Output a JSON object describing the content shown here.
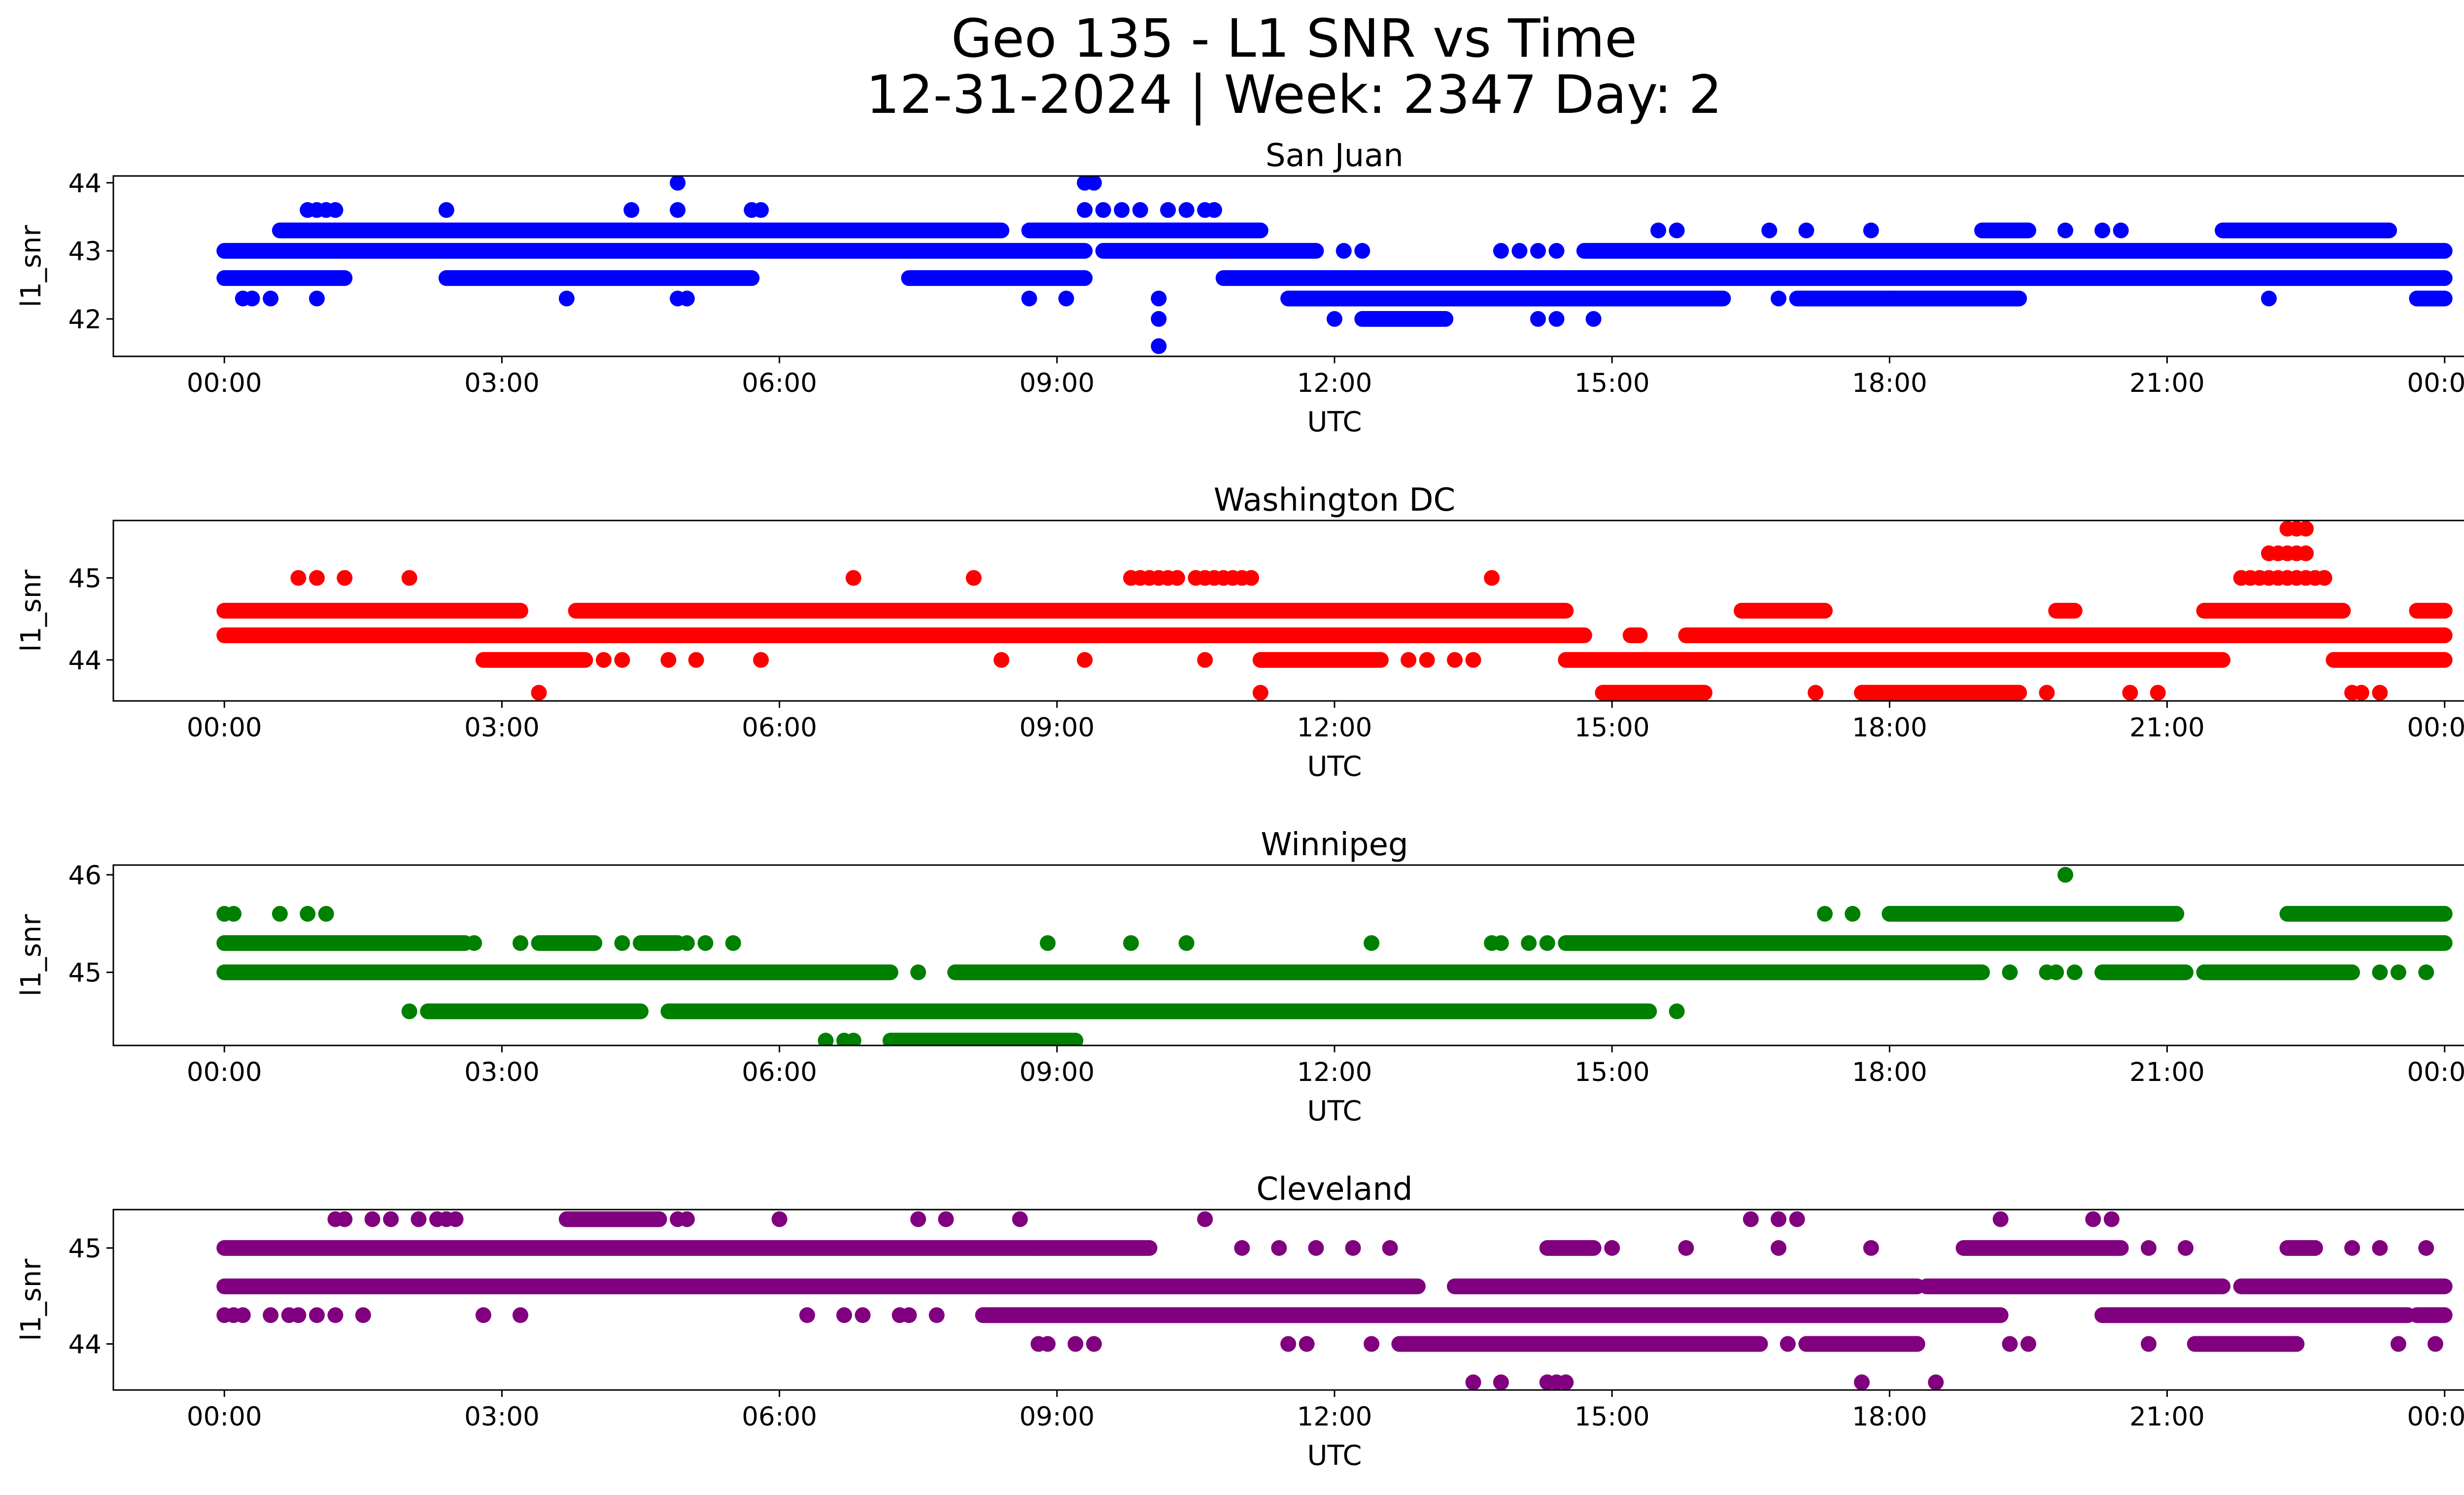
{
  "figure": {
    "title_line1": "Geo 135 - L1 SNR vs Time",
    "title_line2": "12-31-2024 | Week: 2347 Day: 2"
  },
  "chart_data": [
    {
      "type": "scatter",
      "title": "San Juan",
      "xlabel": "UTC",
      "ylabel": "l1_snr",
      "color": "#0000ff",
      "xlim_hours": [
        -1.2,
        25.2
      ],
      "ylim": [
        41.45,
        44.1
      ],
      "x_ticks": [
        "00:00",
        "03:00",
        "06:00",
        "09:00",
        "12:00",
        "15:00",
        "18:00",
        "21:00",
        "00:00"
      ],
      "y_ticks": [
        42,
        43,
        44
      ],
      "bands": [
        {
          "y": 43.3,
          "from": 0.6,
          "to": 8.4
        },
        {
          "y": 43.3,
          "from": 8.7,
          "to": 11.2
        },
        {
          "y": 43.3,
          "from": 19.0,
          "to": 19.5
        },
        {
          "y": 43.3,
          "from": 21.6,
          "to": 23.4
        },
        {
          "y": 43.0,
          "from": 0.0,
          "to": 9.3
        },
        {
          "y": 43.0,
          "from": 9.5,
          "to": 11.8
        },
        {
          "y": 43.0,
          "from": 14.7,
          "to": 24.0
        },
        {
          "y": 42.6,
          "from": 0.0,
          "to": 1.3
        },
        {
          "y": 42.6,
          "from": 2.4,
          "to": 5.7
        },
        {
          "y": 42.6,
          "from": 7.4,
          "to": 9.3
        },
        {
          "y": 42.6,
          "from": 10.8,
          "to": 24.0
        },
        {
          "y": 42.3,
          "from": 11.5,
          "to": 16.2
        },
        {
          "y": 42.3,
          "from": 17.0,
          "to": 19.4
        },
        {
          "y": 42.3,
          "from": 23.7,
          "to": 24.0
        },
        {
          "y": 42.0,
          "from": 12.3,
          "to": 13.2
        }
      ],
      "points": [
        [
          0.9,
          43.6
        ],
        [
          1.0,
          43.6
        ],
        [
          1.1,
          43.6
        ],
        [
          1.2,
          43.6
        ],
        [
          2.4,
          43.6
        ],
        [
          4.4,
          43.6
        ],
        [
          4.9,
          43.6
        ],
        [
          5.7,
          43.6
        ],
        [
          5.8,
          43.6
        ],
        [
          4.9,
          44.0
        ],
        [
          9.3,
          44.0
        ],
        [
          9.4,
          44.0
        ],
        [
          9.3,
          43.6
        ],
        [
          9.5,
          43.6
        ],
        [
          9.7,
          43.6
        ],
        [
          9.9,
          43.6
        ],
        [
          10.2,
          43.6
        ],
        [
          10.4,
          43.6
        ],
        [
          10.6,
          43.6
        ],
        [
          10.7,
          43.6
        ],
        [
          0.2,
          42.3
        ],
        [
          0.3,
          42.3
        ],
        [
          0.5,
          42.3
        ],
        [
          1.0,
          42.3
        ],
        [
          3.7,
          42.3
        ],
        [
          4.9,
          42.3
        ],
        [
          5.0,
          42.3
        ],
        [
          8.7,
          42.3
        ],
        [
          9.1,
          42.3
        ],
        [
          10.1,
          42.3
        ],
        [
          10.1,
          42.0
        ],
        [
          10.1,
          41.6
        ],
        [
          12.0,
          42.0
        ],
        [
          12.1,
          43.0
        ],
        [
          12.3,
          43.0
        ],
        [
          13.8,
          43.0
        ],
        [
          14.0,
          43.0
        ],
        [
          14.2,
          43.0
        ],
        [
          14.4,
          43.0
        ],
        [
          14.2,
          42.0
        ],
        [
          14.4,
          42.0
        ],
        [
          14.8,
          42.0
        ],
        [
          15.5,
          43.3
        ],
        [
          15.7,
          43.3
        ],
        [
          16.7,
          43.3
        ],
        [
          17.1,
          43.3
        ],
        [
          17.8,
          43.3
        ],
        [
          19.9,
          43.3
        ],
        [
          20.3,
          43.3
        ],
        [
          20.5,
          43.3
        ],
        [
          22.1,
          43.3
        ],
        [
          22.3,
          43.3
        ],
        [
          22.1,
          42.3
        ],
        [
          16.8,
          42.3
        ],
        [
          17.9,
          42.3
        ],
        [
          18.0,
          42.3
        ]
      ]
    },
    {
      "type": "scatter",
      "title": "Washington DC",
      "xlabel": "UTC",
      "ylabel": "l1_snr",
      "color": "#ff0000",
      "xlim_hours": [
        -1.2,
        25.2
      ],
      "ylim": [
        43.5,
        45.7
      ],
      "x_ticks": [
        "00:00",
        "03:00",
        "06:00",
        "09:00",
        "12:00",
        "15:00",
        "18:00",
        "21:00",
        "00:00"
      ],
      "y_ticks": [
        44,
        45
      ],
      "bands": [
        {
          "y": 44.6,
          "from": 0.0,
          "to": 3.2
        },
        {
          "y": 44.6,
          "from": 3.8,
          "to": 14.5
        },
        {
          "y": 44.6,
          "from": 16.4,
          "to": 17.3
        },
        {
          "y": 44.6,
          "from": 19.8,
          "to": 20.0
        },
        {
          "y": 44.6,
          "from": 21.4,
          "to": 22.9
        },
        {
          "y": 44.6,
          "from": 23.7,
          "to": 24.0
        },
        {
          "y": 44.3,
          "from": 0.0,
          "to": 14.7
        },
        {
          "y": 44.3,
          "from": 15.2,
          "to": 15.3
        },
        {
          "y": 44.3,
          "from": 15.8,
          "to": 24.0
        },
        {
          "y": 44.0,
          "from": 2.8,
          "to": 3.9
        },
        {
          "y": 44.0,
          "from": 11.2,
          "to": 12.5
        },
        {
          "y": 44.0,
          "from": 14.5,
          "to": 21.6
        },
        {
          "y": 44.0,
          "from": 22.8,
          "to": 24.0
        },
        {
          "y": 43.6,
          "from": 14.9,
          "to": 16.0
        },
        {
          "y": 43.6,
          "from": 17.7,
          "to": 19.4
        }
      ],
      "points": [
        [
          0.8,
          45.0
        ],
        [
          1.0,
          45.0
        ],
        [
          1.3,
          45.0
        ],
        [
          2.0,
          45.0
        ],
        [
          6.8,
          45.0
        ],
        [
          8.1,
          45.0
        ],
        [
          13.7,
          45.0
        ],
        [
          9.8,
          45.0
        ],
        [
          9.9,
          45.0
        ],
        [
          10.0,
          45.0
        ],
        [
          10.1,
          45.0
        ],
        [
          10.2,
          45.0
        ],
        [
          10.3,
          45.0
        ],
        [
          10.5,
          45.0
        ],
        [
          10.6,
          45.0
        ],
        [
          10.7,
          45.0
        ],
        [
          10.8,
          45.0
        ],
        [
          10.9,
          45.0
        ],
        [
          11.0,
          45.0
        ],
        [
          11.1,
          45.0
        ],
        [
          3.4,
          43.6
        ],
        [
          11.2,
          43.6
        ],
        [
          17.2,
          43.6
        ],
        [
          19.7,
          43.6
        ],
        [
          20.6,
          43.6
        ],
        [
          20.9,
          43.6
        ],
        [
          23.0,
          43.6
        ],
        [
          23.1,
          43.6
        ],
        [
          23.3,
          43.6
        ],
        [
          4.1,
          44.0
        ],
        [
          4.3,
          44.0
        ],
        [
          4.8,
          44.0
        ],
        [
          5.1,
          44.0
        ],
        [
          5.8,
          44.0
        ],
        [
          8.4,
          44.0
        ],
        [
          9.3,
          44.0
        ],
        [
          10.6,
          44.0
        ],
        [
          12.8,
          44.0
        ],
        [
          13.0,
          44.0
        ],
        [
          13.3,
          44.0
        ],
        [
          13.5,
          44.0
        ],
        [
          21.8,
          45.0
        ],
        [
          21.9,
          45.0
        ],
        [
          22.0,
          45.0
        ],
        [
          22.1,
          45.0
        ],
        [
          22.2,
          45.0
        ],
        [
          22.3,
          45.0
        ],
        [
          22.4,
          45.0
        ],
        [
          22.5,
          45.0
        ],
        [
          22.6,
          45.0
        ],
        [
          22.7,
          45.0
        ],
        [
          22.1,
          45.3
        ],
        [
          22.2,
          45.3
        ],
        [
          22.3,
          45.3
        ],
        [
          22.4,
          45.3
        ],
        [
          22.5,
          45.3
        ],
        [
          22.3,
          45.6
        ],
        [
          22.4,
          45.6
        ],
        [
          22.5,
          45.6
        ]
      ]
    },
    {
      "type": "scatter",
      "title": "Winnipeg",
      "xlabel": "UTC",
      "ylabel": "l1_snr",
      "color": "#008000",
      "xlim_hours": [
        -1.2,
        25.2
      ],
      "ylim": [
        44.25,
        46.1
      ],
      "x_ticks": [
        "00:00",
        "03:00",
        "06:00",
        "09:00",
        "12:00",
        "15:00",
        "18:00",
        "21:00",
        "00:00"
      ],
      "y_ticks": [
        45,
        46
      ],
      "bands": [
        {
          "y": 45.6,
          "from": 18.0,
          "to": 21.1
        },
        {
          "y": 45.6,
          "from": 22.3,
          "to": 24.0
        },
        {
          "y": 45.3,
          "from": 0.0,
          "to": 2.6
        },
        {
          "y": 45.3,
          "from": 3.4,
          "to": 4.0
        },
        {
          "y": 45.3,
          "from": 4.5,
          "to": 4.9
        },
        {
          "y": 45.3,
          "from": 14.5,
          "to": 24.0
        },
        {
          "y": 45.0,
          "from": 0.0,
          "to": 7.2
        },
        {
          "y": 45.0,
          "from": 7.9,
          "to": 19.0
        },
        {
          "y": 45.0,
          "from": 20.3,
          "to": 21.2
        },
        {
          "y": 45.0,
          "from": 21.4,
          "to": 23.0
        },
        {
          "y": 44.6,
          "from": 2.2,
          "to": 4.5
        },
        {
          "y": 44.6,
          "from": 4.8,
          "to": 15.4
        },
        {
          "y": 44.3,
          "from": 7.2,
          "to": 9.2
        }
      ],
      "points": [
        [
          0.0,
          45.6
        ],
        [
          0.1,
          45.6
        ],
        [
          0.6,
          45.6
        ],
        [
          0.9,
          45.6
        ],
        [
          1.1,
          45.6
        ],
        [
          17.3,
          45.6
        ],
        [
          17.6,
          45.6
        ],
        [
          19.9,
          46.0
        ],
        [
          2.7,
          45.3
        ],
        [
          3.2,
          45.3
        ],
        [
          4.3,
          45.3
        ],
        [
          5.0,
          45.3
        ],
        [
          5.2,
          45.3
        ],
        [
          5.5,
          45.3
        ],
        [
          8.9,
          45.3
        ],
        [
          9.8,
          45.3
        ],
        [
          10.4,
          45.3
        ],
        [
          12.4,
          45.3
        ],
        [
          13.7,
          45.3
        ],
        [
          13.8,
          45.3
        ],
        [
          14.1,
          45.3
        ],
        [
          14.3,
          45.3
        ],
        [
          7.5,
          45.0
        ],
        [
          19.3,
          45.0
        ],
        [
          19.7,
          45.0
        ],
        [
          19.8,
          45.0
        ],
        [
          20.0,
          45.0
        ],
        [
          23.3,
          45.0
        ],
        [
          23.5,
          45.0
        ],
        [
          23.8,
          45.0
        ],
        [
          2.0,
          44.6
        ],
        [
          15.7,
          44.6
        ],
        [
          6.5,
          44.3
        ],
        [
          6.7,
          44.3
        ],
        [
          6.8,
          44.3
        ]
      ]
    },
    {
      "type": "scatter",
      "title": "Cleveland",
      "xlabel": "UTC",
      "ylabel": "l1_snr",
      "color": "#800080",
      "xlim_hours": [
        -1.2,
        25.2
      ],
      "ylim": [
        43.52,
        45.4
      ],
      "x_ticks": [
        "00:00",
        "03:00",
        "06:00",
        "09:00",
        "12:00",
        "15:00",
        "18:00",
        "21:00",
        "00:00"
      ],
      "y_ticks": [
        44,
        45
      ],
      "bands": [
        {
          "y": 45.3,
          "from": 3.7,
          "to": 4.7
        },
        {
          "y": 45.0,
          "from": 0.0,
          "to": 8.8
        },
        {
          "y": 45.0,
          "from": 8.8,
          "to": 10.0
        },
        {
          "y": 45.0,
          "from": 14.3,
          "to": 14.8
        },
        {
          "y": 45.0,
          "from": 18.8,
          "to": 20.5
        },
        {
          "y": 45.0,
          "from": 22.3,
          "to": 22.6
        },
        {
          "y": 44.6,
          "from": 0.0,
          "to": 12.9
        },
        {
          "y": 44.6,
          "from": 13.3,
          "to": 18.3
        },
        {
          "y": 44.6,
          "from": 18.4,
          "to": 21.6
        },
        {
          "y": 44.6,
          "from": 21.8,
          "to": 24.0
        },
        {
          "y": 44.3,
          "from": 8.2,
          "to": 19.2
        },
        {
          "y": 44.3,
          "from": 20.3,
          "to": 23.6
        },
        {
          "y": 44.3,
          "from": 23.7,
          "to": 24.0
        },
        {
          "y": 44.0,
          "from": 12.7,
          "to": 16.6
        },
        {
          "y": 44.0,
          "from": 17.1,
          "to": 18.3
        },
        {
          "y": 44.0,
          "from": 21.3,
          "to": 22.4
        }
      ],
      "points": [
        [
          1.2,
          45.3
        ],
        [
          1.3,
          45.3
        ],
        [
          1.6,
          45.3
        ],
        [
          1.8,
          45.3
        ],
        [
          2.1,
          45.3
        ],
        [
          2.3,
          45.3
        ],
        [
          2.4,
          45.3
        ],
        [
          2.5,
          45.3
        ],
        [
          4.9,
          45.3
        ],
        [
          5.0,
          45.3
        ],
        [
          6.0,
          45.3
        ],
        [
          7.5,
          45.3
        ],
        [
          7.8,
          45.3
        ],
        [
          8.6,
          45.3
        ],
        [
          10.6,
          45.3
        ],
        [
          16.5,
          45.3
        ],
        [
          16.8,
          45.3
        ],
        [
          17.0,
          45.3
        ],
        [
          19.2,
          45.3
        ],
        [
          20.2,
          45.3
        ],
        [
          20.4,
          45.3
        ],
        [
          0.0,
          44.3
        ],
        [
          0.1,
          44.3
        ],
        [
          0.2,
          44.3
        ],
        [
          0.5,
          44.3
        ],
        [
          0.7,
          44.3
        ],
        [
          0.8,
          44.3
        ],
        [
          1.0,
          44.3
        ],
        [
          1.2,
          44.3
        ],
        [
          1.5,
          44.3
        ],
        [
          2.8,
          44.3
        ],
        [
          3.2,
          44.3
        ],
        [
          6.3,
          44.3
        ],
        [
          6.7,
          44.3
        ],
        [
          6.9,
          44.3
        ],
        [
          7.3,
          44.3
        ],
        [
          7.4,
          44.3
        ],
        [
          7.7,
          44.3
        ],
        [
          8.8,
          44.0
        ],
        [
          8.9,
          44.0
        ],
        [
          9.2,
          44.0
        ],
        [
          9.4,
          44.0
        ],
        [
          11.5,
          44.0
        ],
        [
          11.7,
          44.0
        ],
        [
          12.4,
          44.0
        ],
        [
          16.9,
          44.0
        ],
        [
          19.3,
          44.0
        ],
        [
          19.5,
          44.0
        ],
        [
          20.8,
          44.0
        ],
        [
          23.5,
          44.0
        ],
        [
          23.9,
          44.0
        ],
        [
          11.0,
          45.0
        ],
        [
          11.4,
          45.0
        ],
        [
          11.8,
          45.0
        ],
        [
          12.2,
          45.0
        ],
        [
          12.6,
          45.0
        ],
        [
          15.0,
          45.0
        ],
        [
          15.8,
          45.0
        ],
        [
          16.8,
          45.0
        ],
        [
          17.8,
          45.0
        ],
        [
          20.8,
          45.0
        ],
        [
          21.2,
          45.0
        ],
        [
          23.0,
          45.0
        ],
        [
          23.3,
          45.0
        ],
        [
          23.8,
          45.0
        ],
        [
          13.5,
          43.6
        ],
        [
          13.8,
          43.6
        ],
        [
          14.3,
          43.6
        ],
        [
          14.4,
          43.6
        ],
        [
          14.5,
          43.6
        ],
        [
          17.7,
          43.6
        ],
        [
          18.5,
          43.6
        ]
      ]
    }
  ]
}
